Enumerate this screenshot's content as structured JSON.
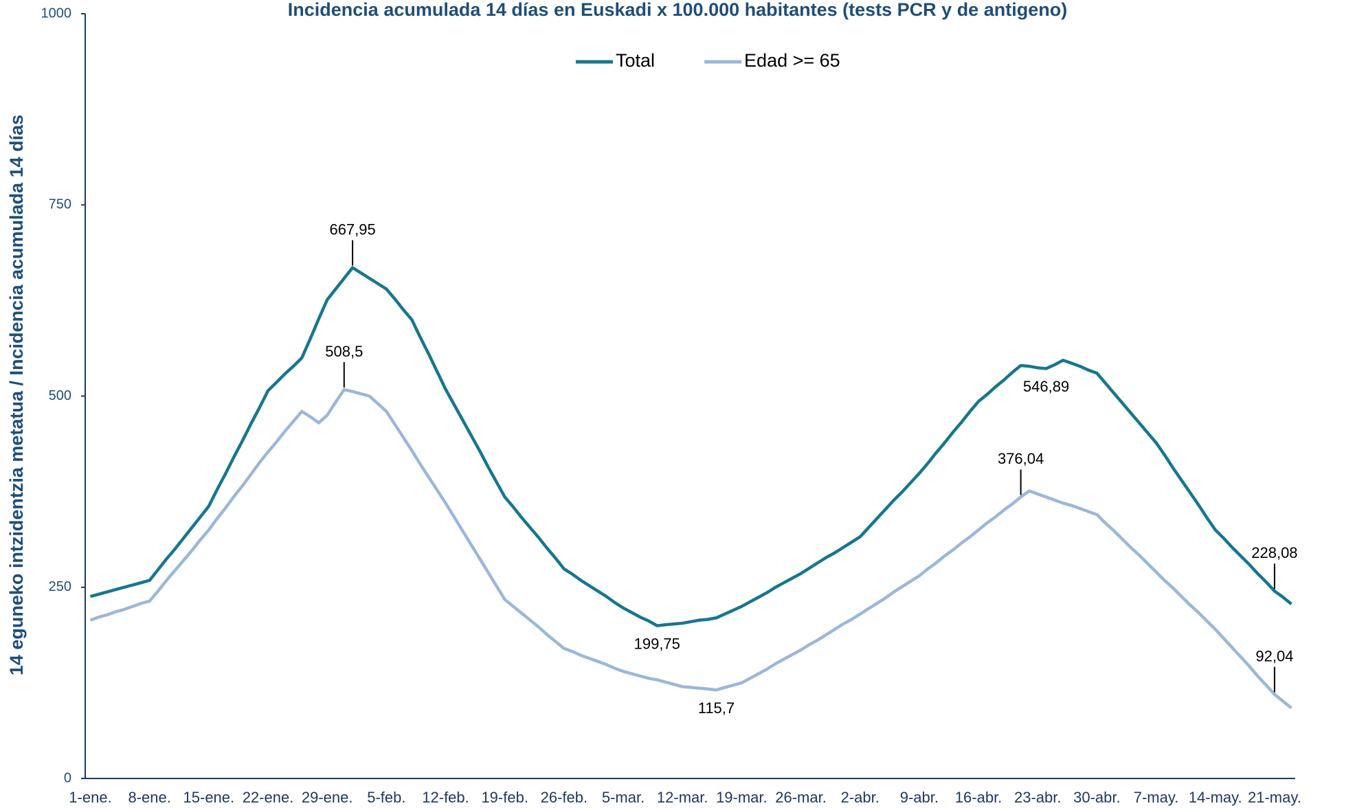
{
  "chart_data": {
    "type": "line",
    "title": "Incidencia acumulada 14 días en Euskadi x 100.000 habitantes (tests PCR y de antigeno)",
    "y_label": "14 eguneko intzidentzia metatua / Incidencia acumulada 14 días",
    "categories": [
      "1-ene.",
      null,
      null,
      null,
      null,
      null,
      null,
      "8-ene.",
      null,
      null,
      null,
      null,
      null,
      null,
      "15-ene.",
      null,
      null,
      null,
      null,
      null,
      null,
      "22-ene.",
      null,
      null,
      null,
      null,
      null,
      null,
      "29-ene.",
      null,
      null,
      null,
      null,
      null,
      null,
      "5-feb.",
      null,
      null,
      null,
      null,
      null,
      null,
      "12-feb.",
      null,
      null,
      null,
      null,
      null,
      null,
      "19-feb.",
      null,
      null,
      null,
      null,
      null,
      null,
      "26-feb.",
      null,
      null,
      null,
      null,
      null,
      null,
      "5-mar.",
      null,
      null,
      null,
      null,
      null,
      null,
      "12-mar.",
      null,
      null,
      null,
      null,
      null,
      null,
      "19-mar.",
      null,
      null,
      null,
      null,
      null,
      null,
      "26-mar.",
      null,
      null,
      null,
      null,
      null,
      null,
      "2-abr.",
      null,
      null,
      null,
      null,
      null,
      null,
      "9-abr.",
      null,
      null,
      null,
      null,
      null,
      null,
      "16-abr.",
      null,
      null,
      null,
      null,
      null,
      null,
      "23-abr.",
      null,
      null,
      null,
      null,
      null,
      null,
      "30-abr.",
      null,
      null,
      null,
      null,
      null,
      null,
      "7-may.",
      null,
      null,
      null,
      null,
      null,
      null,
      "14-may.",
      null,
      null,
      null,
      null,
      null,
      null,
      "21-may.",
      null,
      null
    ],
    "series": [
      {
        "name": "Total",
        "color": "#17768f",
        "values": [
          238,
          241,
          244,
          247,
          250,
          253,
          256,
          259,
          273,
          287,
          300,
          314,
          328,
          342,
          356,
          378,
          399,
          421,
          442,
          464,
          485,
          507,
          518,
          529,
          539,
          550,
          575,
          601,
          626,
          640,
          654,
          667.95,
          661,
          654,
          647,
          640,
          627,
          613,
          600,
          577,
          555,
          532,
          509,
          489,
          469,
          449,
          429,
          408,
          388,
          368,
          355,
          341,
          328,
          315,
          301,
          288,
          274,
          267,
          259,
          252,
          245,
          238,
          230,
          223,
          217,
          211,
          206,
          199.75,
          201,
          202,
          203,
          205,
          207,
          208,
          210,
          215,
          220,
          225,
          231,
          237,
          243,
          250,
          256,
          262,
          268,
          275,
          282,
          289,
          295,
          302,
          309,
          316,
          328,
          340,
          352,
          364,
          375,
          387,
          399,
          412,
          426,
          439,
          453,
          466,
          480,
          493,
          502,
          512,
          521,
          531,
          540,
          539,
          537,
          536,
          541,
          546.89,
          543,
          539,
          534,
          530,
          517,
          504,
          491,
          478,
          465,
          452,
          439,
          423,
          406,
          390,
          374,
          358,
          341,
          325,
          314,
          302,
          291,
          280,
          268,
          257,
          245,
          237,
          228.08
        ],
        "value_labels": [
          null,
          null,
          null,
          null,
          null,
          null,
          null,
          null,
          null,
          null,
          null,
          null,
          null,
          null,
          null,
          null,
          null,
          null,
          null,
          null,
          null,
          null,
          null,
          null,
          null,
          null,
          null,
          null,
          null,
          null,
          null,
          "667,95",
          null,
          null,
          null,
          null,
          null,
          null,
          null,
          null,
          null,
          null,
          null,
          null,
          null,
          null,
          null,
          null,
          null,
          null,
          null,
          null,
          null,
          null,
          null,
          null,
          null,
          null,
          null,
          null,
          null,
          null,
          null,
          null,
          null,
          null,
          null,
          "199,75",
          null,
          null,
          null,
          null,
          null,
          null,
          null,
          null,
          null,
          null,
          null,
          null,
          null,
          null,
          null,
          null,
          null,
          null,
          null,
          null,
          null,
          null,
          null,
          null,
          null,
          null,
          null,
          null,
          null,
          null,
          null,
          null,
          null,
          null,
          null,
          null,
          null,
          null,
          null,
          null,
          null,
          null,
          null,
          null,
          null,
          "546,89",
          null,
          null,
          null,
          null,
          null,
          null,
          null,
          null,
          null,
          null,
          null,
          null,
          null,
          null,
          null,
          null,
          null,
          null,
          null,
          null,
          null,
          null,
          null,
          null,
          null,
          null,
          "228,08"
        ]
      },
      {
        "name": "Edad >= 65",
        "color": "#9bb7d9",
        "values": [
          207,
          211,
          214,
          218,
          221,
          225,
          229,
          232,
          245,
          259,
          272,
          285,
          298,
          312,
          325,
          340,
          354,
          369,
          383,
          398,
          413,
          427,
          440,
          454,
          467,
          480,
          473,
          465,
          475,
          492,
          508.5,
          506,
          503,
          500,
          490,
          480,
          463,
          446,
          429,
          411,
          394,
          377,
          360,
          342,
          324,
          306,
          288,
          270,
          252,
          234,
          225,
          216,
          207,
          198,
          188,
          179,
          170,
          166,
          161,
          157,
          153,
          149,
          144,
          140,
          137,
          134,
          131,
          129,
          126,
          123,
          120,
          119,
          118,
          117,
          115.7,
          119,
          122,
          125,
          131,
          137,
          143,
          150,
          156,
          162,
          168,
          175,
          181,
          188,
          195,
          202,
          208,
          215,
          222,
          229,
          236,
          244,
          251,
          258,
          265,
          274,
          282,
          291,
          299,
          308,
          316,
          325,
          334,
          342,
          351,
          359,
          368,
          376.04,
          372,
          368,
          364,
          360,
          357,
          353,
          349,
          345,
          334,
          324,
          313,
          302,
          292,
          281,
          270,
          259,
          249,
          238,
          227,
          217,
          206,
          195,
          183,
          171,
          159,
          147,
          134,
          122,
          110,
          101,
          92.04
        ],
        "value_labels": [
          null,
          null,
          null,
          null,
          null,
          null,
          null,
          null,
          null,
          null,
          null,
          null,
          null,
          null,
          null,
          null,
          null,
          null,
          null,
          null,
          null,
          null,
          null,
          null,
          null,
          null,
          null,
          null,
          null,
          null,
          "508,5",
          null,
          null,
          null,
          null,
          null,
          null,
          null,
          null,
          null,
          null,
          null,
          null,
          null,
          null,
          null,
          null,
          null,
          null,
          null,
          null,
          null,
          null,
          null,
          null,
          null,
          null,
          null,
          null,
          null,
          null,
          null,
          null,
          null,
          null,
          null,
          null,
          null,
          null,
          null,
          null,
          null,
          null,
          null,
          "115,7",
          null,
          null,
          null,
          null,
          null,
          null,
          null,
          null,
          null,
          null,
          null,
          null,
          null,
          null,
          null,
          null,
          null,
          null,
          null,
          null,
          null,
          null,
          null,
          null,
          null,
          null,
          null,
          null,
          null,
          null,
          null,
          null,
          null,
          null,
          null,
          "376,04",
          null,
          null,
          null,
          null,
          null,
          null,
          null,
          null,
          null,
          null,
          null,
          null,
          null,
          null,
          null,
          null,
          null,
          null,
          null,
          null,
          null,
          null,
          null,
          null,
          null,
          null,
          null,
          null,
          null,
          "92,04"
        ]
      }
    ],
    "ylim": [
      0,
      1000
    ],
    "yticks": [
      0,
      250,
      500,
      750,
      1000
    ],
    "grid": false,
    "legend": "top"
  }
}
